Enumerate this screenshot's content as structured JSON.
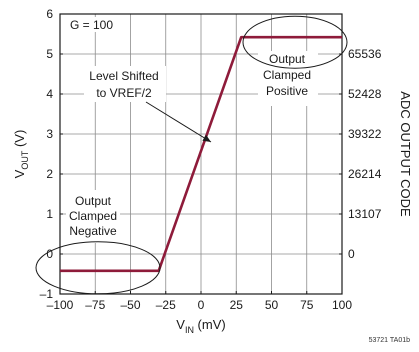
{
  "chart_data": {
    "type": "line",
    "xlabel": {
      "main": "V",
      "sub": "IN",
      "unit": " (mV)"
    },
    "ylabel": {
      "main": "V",
      "sub": "OUT",
      "unit": " (V)"
    },
    "y2label": "ADC OUTPUT CODE",
    "xlim": [
      -100,
      100
    ],
    "ylim": [
      -1,
      6
    ],
    "xticks": [
      -100,
      -75,
      -50,
      -25,
      0,
      25,
      50,
      75,
      100
    ],
    "xtick_labels": [
      "–100",
      "–75",
      "–50",
      "–25",
      "0",
      "25",
      "50",
      "75",
      "100"
    ],
    "yticks": [
      -1,
      0,
      1,
      2,
      3,
      4,
      5,
      6
    ],
    "ytick_labels": [
      "–1",
      "0",
      "1",
      "2",
      "3",
      "4",
      "5",
      "6"
    ],
    "y2ticks": [
      {
        "y": 0,
        "label": "0"
      },
      {
        "y": 1,
        "label": "13107"
      },
      {
        "y": 2,
        "label": "26214"
      },
      {
        "y": 3,
        "label": "39322"
      },
      {
        "y": 4,
        "label": "52428"
      },
      {
        "y": 5,
        "label": "65536"
      }
    ],
    "grid": true,
    "series": [
      {
        "color": "#8e1b3a",
        "x": [
          -100,
          -30,
          28.5,
          100
        ],
        "y": [
          -0.42,
          -0.42,
          5.42,
          5.42
        ]
      }
    ],
    "annotations": {
      "gain": "G = 100",
      "level_shift": [
        "Level Shifted",
        "to VREF/2"
      ],
      "clamp_positive": [
        "Output",
        "Clamped",
        "Positive"
      ],
      "clamp_negative": [
        "Output",
        "Clamped",
        "Negative"
      ]
    },
    "figure_id": "53721 TA01b"
  }
}
